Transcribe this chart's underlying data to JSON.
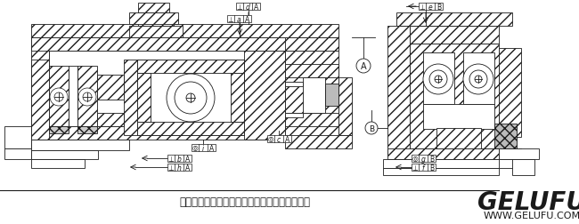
{
  "title_caption": "单级谐波传动组件安装时的位置公差要求示意图",
  "brand": "GELUFU",
  "website": "WWW.GELUFU.COM",
  "bg_color": "#ffffff",
  "line_color": "#1a1a1a",
  "caption_fontsize": 8.5,
  "brand_fontsize": 20,
  "web_fontsize": 8,
  "fig_width": 6.5,
  "fig_height": 2.53,
  "dpi": 100,
  "hatch_density": "///",
  "lw": 0.6
}
